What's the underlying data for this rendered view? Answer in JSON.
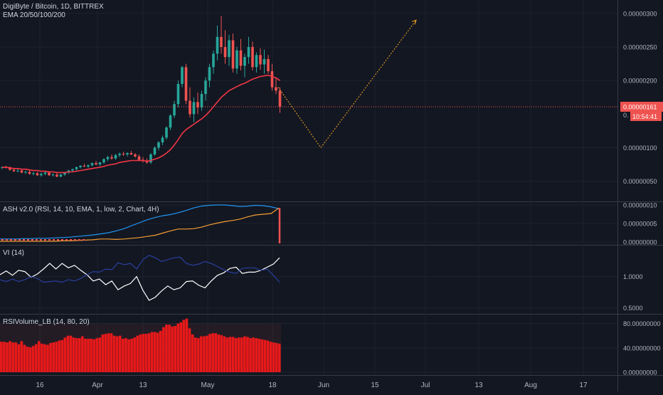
{
  "header": {
    "symbol_line": "DigiByte / Bitcoin, 1D, BITTREX",
    "ema_line": "EMA 20/50/100/200"
  },
  "price_axis": {
    "ticks": [
      "0.00000300",
      "0.00000250",
      "0.00000200",
      "0.00000100",
      "0.00000050"
    ],
    "last_price": "0.00000161",
    "countdown": "10:54:41",
    "partial_label": "0."
  },
  "chart_data": [
    {
      "type": "candlestick",
      "title": "DigiByte / Bitcoin, 1D, BITTREX",
      "overlay": "EMA 20/50/100/200",
      "x_ticks": [
        "16",
        "Apr",
        "13",
        "May",
        "18",
        "Jun",
        "15",
        "Jul",
        "13",
        "Aug",
        "17"
      ],
      "ylim": [
        2e-07,
        3.2e-06
      ],
      "last_price": 1.61e-06,
      "candles": [
        [
          7e-07,
          7.2e-07,
          6.8e-07,
          7.1e-07
        ],
        [
          7.1e-07,
          7.3e-07,
          6.9e-07,
          7e-07
        ],
        [
          7e-07,
          7.2e-07,
          6.6e-07,
          6.7e-07
        ],
        [
          6.7e-07,
          6.9e-07,
          6.4e-07,
          6.5e-07
        ],
        [
          6.5e-07,
          6.8e-07,
          6.3e-07,
          6.6e-07
        ],
        [
          6.6e-07,
          6.8e-07,
          6.2e-07,
          6.3e-07
        ],
        [
          6.3e-07,
          6.6e-07,
          6.1e-07,
          6.4e-07
        ],
        [
          6.4e-07,
          6.6e-07,
          6e-07,
          6.1e-07
        ],
        [
          6.1e-07,
          6.4e-07,
          5.9e-07,
          6.2e-07
        ],
        [
          6.2e-07,
          6.4e-07,
          5.8e-07,
          5.9e-07
        ],
        [
          5.9e-07,
          6.3e-07,
          5.7e-07,
          6.1e-07
        ],
        [
          6.1e-07,
          6.5e-07,
          5.9e-07,
          6.3e-07
        ],
        [
          6.3e-07,
          6.5e-07,
          5.8e-07,
          5.9e-07
        ],
        [
          5.9e-07,
          6.2e-07,
          5.7e-07,
          6e-07
        ],
        [
          6e-07,
          6.3e-07,
          5.6e-07,
          5.7e-07
        ],
        [
          5.7e-07,
          6.1e-07,
          5.6e-07,
          6e-07
        ],
        [
          6e-07,
          6.4e-07,
          5.8e-07,
          6.3e-07
        ],
        [
          6.3e-07,
          6.7e-07,
          6.1e-07,
          6.6e-07
        ],
        [
          6.6e-07,
          6.9e-07,
          6.4e-07,
          6.8e-07
        ],
        [
          6.8e-07,
          7.2e-07,
          6.6e-07,
          7.1e-07
        ],
        [
          7.1e-07,
          7.4e-07,
          6.9e-07,
          7.3e-07
        ],
        [
          7.3e-07,
          7.6e-07,
          7.1e-07,
          7.2e-07
        ],
        [
          7.2e-07,
          7.5e-07,
          7e-07,
          7.4e-07
        ],
        [
          7.4e-07,
          7.8e-07,
          7.2e-07,
          7.7e-07
        ],
        [
          7.7e-07,
          8e-07,
          7.4e-07,
          7.5e-07
        ],
        [
          7.5e-07,
          7.9e-07,
          7.3e-07,
          7.8e-07
        ],
        [
          7.8e-07,
          8.4e-07,
          7.6e-07,
          8.3e-07
        ],
        [
          8.3e-07,
          8.8e-07,
          8e-07,
          8.6e-07
        ],
        [
          8.6e-07,
          9e-07,
          8.2e-07,
          8.4e-07
        ],
        [
          8.4e-07,
          9.1e-07,
          8.2e-07,
          8.9e-07
        ],
        [
          8.9e-07,
          9.3e-07,
          8.6e-07,
          9.1e-07
        ],
        [
          9.1e-07,
          9.4e-07,
          8.8e-07,
          9e-07
        ],
        [
          9e-07,
          9.3e-07,
          8.7e-07,
          9.2e-07
        ],
        [
          9.2e-07,
          9.5e-07,
          8.9e-07,
          9e-07
        ],
        [
          9e-07,
          9.2e-07,
          8.5e-07,
          8.7e-07
        ],
        [
          8.7e-07,
          9e-07,
          8e-07,
          8.2e-07
        ],
        [
          8.2e-07,
          8.6e-07,
          7.8e-07,
          8e-07
        ],
        [
          8e-07,
          8.4e-07,
          7.6e-07,
          7.8e-07
        ],
        [
          7.8e-07,
          9.2e-07,
          7.6e-07,
          9e-07
        ],
        [
          9e-07,
          1.02e-06,
          8.8e-07,
          1e-06
        ],
        [
          1e-06,
          1.1e-06,
          9.6e-07,
          1.08e-06
        ],
        [
          1.08e-06,
          1.18e-06,
          1.04e-06,
          1.15e-06
        ],
        [
          1.15e-06,
          1.32e-06,
          1.12e-06,
          1.3e-06
        ],
        [
          1.3e-06,
          1.5e-06,
          1.26e-06,
          1.48e-06
        ],
        [
          1.48e-06,
          1.7e-06,
          1.44e-06,
          1.65e-06
        ],
        [
          1.65e-06,
          2e-06,
          1.6e-06,
          1.95e-06
        ],
        [
          1.95e-06,
          2.22e-06,
          1.9e-06,
          2.2e-06
        ],
        [
          2.2e-06,
          2.25e-06,
          1.65e-06,
          1.7e-06
        ],
        [
          1.7e-06,
          1.9e-06,
          1.45e-06,
          1.5e-06
        ],
        [
          1.5e-06,
          1.75e-06,
          1.38e-06,
          1.68e-06
        ],
        [
          1.68e-06,
          1.82e-06,
          1.5e-06,
          1.6e-06
        ],
        [
          1.6e-06,
          1.85e-06,
          1.55e-06,
          1.8e-06
        ],
        [
          1.8e-06,
          2.05e-06,
          1.7e-06,
          2e-06
        ],
        [
          2e-06,
          2.25e-06,
          1.9e-06,
          2.2e-06
        ],
        [
          2.2e-06,
          2.45e-06,
          2.1e-06,
          2.4e-06
        ],
        [
          2.4e-06,
          2.82e-06,
          2.3e-06,
          2.65e-06
        ],
        [
          2.65e-06,
          2.96e-06,
          2.4e-06,
          2.5e-06
        ],
        [
          2.5e-06,
          2.75e-06,
          2.25e-06,
          2.35e-06
        ],
        [
          2.35e-06,
          2.68e-06,
          2.22e-06,
          2.6e-06
        ],
        [
          2.6e-06,
          2.7e-06,
          2.12e-06,
          2.18e-06
        ],
        [
          2.18e-06,
          2.5e-06,
          2.1e-06,
          2.45e-06
        ],
        [
          2.45e-06,
          2.62e-06,
          2.15e-06,
          2.22e-06
        ],
        [
          2.22e-06,
          2.4e-06,
          2.05e-06,
          2.35e-06
        ],
        [
          2.35e-06,
          2.65e-06,
          2.25e-06,
          2.5e-06
        ],
        [
          2.5e-06,
          2.58e-06,
          2.15e-06,
          2.2e-06
        ],
        [
          2.2e-06,
          2.42e-06,
          2.12e-06,
          2.38e-06
        ],
        [
          2.38e-06,
          2.48e-06,
          2.16e-06,
          2.24e-06
        ],
        [
          2.24e-06,
          2.46e-06,
          2.1e-06,
          2.32e-06
        ],
        [
          2.32e-06,
          2.38e-06,
          2.1e-06,
          2.14e-06
        ],
        [
          2.14e-06,
          2.25e-06,
          1.85e-06,
          1.9e-06
        ],
        [
          1.9e-06,
          2.05e-06,
          1.8e-06,
          1.85e-06
        ],
        [
          1.85e-06,
          1.9e-06,
          1.52e-06,
          1.61e-06
        ]
      ],
      "ema": [
        7.1e-07,
        7.1e-07,
        7e-07,
        6.9e-07,
        6.9e-07,
        6.8e-07,
        6.8e-07,
        6.7e-07,
        6.6e-07,
        6.6e-07,
        6.5e-07,
        6.5e-07,
        6.4e-07,
        6.4e-07,
        6.3e-07,
        6.3e-07,
        6.3e-07,
        6.4e-07,
        6.4e-07,
        6.5e-07,
        6.6e-07,
        6.7e-07,
        6.8e-07,
        6.9e-07,
        7e-07,
        7.1e-07,
        7.2e-07,
        7.4e-07,
        7.5e-07,
        7.6e-07,
        7.8e-07,
        7.9e-07,
        8e-07,
        8.1e-07,
        8.1e-07,
        8.1e-07,
        8.1e-07,
        8e-07,
        8.1e-07,
        8.3e-07,
        8.5e-07,
        8.8e-07,
        9.2e-07,
        9.7e-07,
        1.04e-06,
        1.12e-06,
        1.21e-06,
        1.27e-06,
        1.31e-06,
        1.35e-06,
        1.39e-06,
        1.43e-06,
        1.48e-06,
        1.54e-06,
        1.61e-06,
        1.68e-06,
        1.75e-06,
        1.8e-06,
        1.85e-06,
        1.88e-06,
        1.91e-06,
        1.94e-06,
        1.96e-06,
        1.99e-06,
        2.02e-06,
        2.04e-06,
        2.06e-06,
        2.07e-06,
        2.08e-06,
        2.06e-06,
        2.04e-06,
        2e-06
      ],
      "projection": [
        {
          "x": "May 21",
          "y": 1.9e-06
        },
        {
          "x": "Jun 01",
          "y": 1e-06
        },
        {
          "x": "Jun 27",
          "y": 2.9e-06
        }
      ]
    },
    {
      "type": "line",
      "title": "ASH v2.0 (RSI, 14, 10, EMA, 1, low, 2, Chart, 4H)",
      "ylim": [
        0,
        1e-07
      ],
      "ticks": [
        "0.00000010",
        "0.00000005",
        "0.00000000"
      ],
      "series": [
        {
          "color": "#2196f3",
          "values": [
            8e-09,
            8e-09,
            8e-09,
            9e-09,
            9e-09,
            1e-08,
            1e-08,
            1.1e-08,
            1.2e-08,
            1.3e-08,
            1.5e-08,
            1.7e-08,
            1.9e-08,
            2.2e-08,
            2.5e-08,
            3e-08,
            3.6e-08,
            4.4e-08,
            5.2e-08,
            6e-08,
            6.6e-08,
            7.1e-08,
            7.4e-08,
            7.9e-08,
            8.5e-08,
            9.2e-08,
            9.7e-08,
            9.9e-08,
            1e-07,
            1e-07,
            9.8e-08,
            9.6e-08,
            9.7e-08,
            9.9e-08,
            9.8e-08,
            9.5e-08,
            9e-08
          ]
        },
        {
          "color": "#f59d34",
          "values": [
            2e-09,
            2e-09,
            2e-09,
            2e-09,
            2e-09,
            2e-09,
            2e-09,
            2e-09,
            3e-09,
            3e-09,
            4e-09,
            5e-09,
            6e-09,
            8e-09,
            8e-09,
            7e-09,
            8e-09,
            1e-08,
            1.2e-08,
            1.5e-08,
            1.8e-08,
            2.4e-08,
            3e-08,
            3.5e-08,
            3.5e-08,
            3.6e-08,
            4e-08,
            4.6e-08,
            5.1e-08,
            5.5e-08,
            5.8e-08,
            6.2e-08,
            6.8e-08,
            7.3e-08,
            7.5e-08,
            7.7e-08,
            9.2e-08
          ]
        }
      ]
    },
    {
      "type": "line",
      "title": "VI (14)",
      "ylim": [
        0.45,
        1.45
      ],
      "ticks": [
        "1.0000",
        "0.5000"
      ],
      "series": [
        {
          "color": "#ffffff",
          "values": [
            1.03,
            1.09,
            1.02,
            1.1,
            1.08,
            0.99,
            1.04,
            1.12,
            1.21,
            1.12,
            1.21,
            1.14,
            1.18,
            1.1,
            1.03,
            0.93,
            0.96,
            0.87,
            0.93,
            0.79,
            0.85,
            0.89,
            1.0,
            0.78,
            0.62,
            0.67,
            0.77,
            0.85,
            0.79,
            0.82,
            0.92,
            0.93,
            0.86,
            0.82,
            0.93,
            1.02,
            1.06,
            1.13,
            1.15,
            1.05,
            1.07,
            1.07,
            1.1,
            1.15,
            1.2,
            1.3
          ]
        },
        {
          "color": "#2a3f9e",
          "values": [
            0.95,
            0.92,
            0.96,
            0.92,
            0.95,
            1.0,
            0.97,
            0.91,
            0.92,
            0.93,
            0.91,
            0.95,
            0.93,
            0.97,
            1.03,
            1.08,
            1.07,
            1.12,
            1.11,
            1.22,
            1.19,
            1.21,
            1.12,
            1.27,
            1.34,
            1.3,
            1.24,
            1.27,
            1.3,
            1.31,
            1.21,
            1.18,
            1.2,
            1.24,
            1.21,
            1.16,
            1.11,
            1.07,
            1.05,
            1.13,
            1.14,
            1.14,
            1.1,
            1.12,
            1.02,
            0.91
          ]
        }
      ]
    },
    {
      "type": "bar",
      "title": "RSIVolume_LB (14, 80, 20)",
      "ylim": [
        0,
        90
      ],
      "ticks": [
        "80.00000000",
        "40.00000000",
        "0.00000000"
      ],
      "values": [
        50,
        50,
        49,
        51,
        49,
        49,
        46,
        51,
        45,
        42,
        41,
        43,
        46,
        51,
        47,
        46,
        45,
        48,
        49,
        50,
        52,
        53,
        57,
        60,
        60,
        57,
        56,
        56,
        59,
        55,
        55,
        55,
        54,
        56,
        57,
        62,
        63,
        64,
        64,
        60,
        59,
        60,
        55,
        56,
        54,
        55,
        57,
        60,
        62,
        63,
        63,
        64,
        66,
        66,
        65,
        68,
        74,
        78,
        78,
        75,
        76,
        80,
        82,
        86,
        88,
        72,
        62,
        57,
        56,
        59,
        59,
        60,
        63,
        64,
        64,
        62,
        61,
        59,
        57,
        58,
        58,
        56,
        57,
        57,
        59,
        58,
        56,
        57,
        56,
        55,
        54,
        53,
        52,
        50,
        49,
        48,
        47
      ]
    }
  ]
}
